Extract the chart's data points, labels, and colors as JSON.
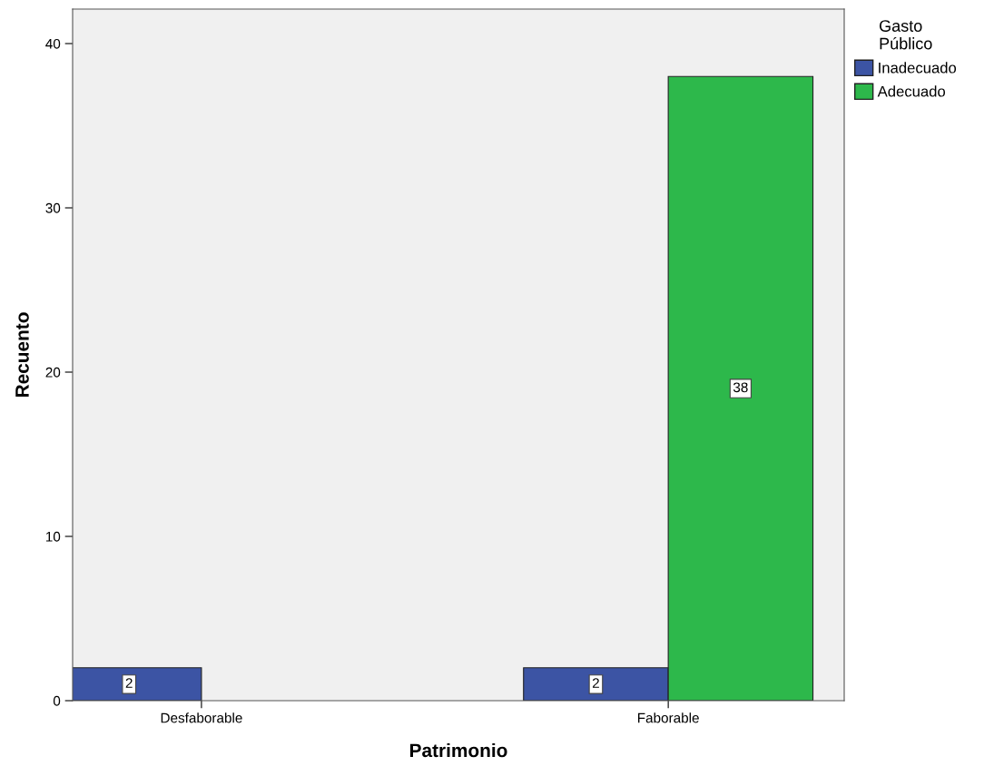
{
  "chart_data": {
    "type": "bar",
    "xlabel": "Patrimonio",
    "ylabel": "Recuento",
    "legend_title": "Gasto\nPúblico",
    "categories": [
      "Desfaborable",
      "Faborable"
    ],
    "series": [
      {
        "name": "Inadecuado",
        "color": "#3c54a4",
        "values": [
          2,
          2
        ],
        "value_labels": [
          "2",
          "2"
        ]
      },
      {
        "name": "Adecuado",
        "color": "#2db84b",
        "values": [
          null,
          38
        ],
        "value_labels": [
          null,
          "38"
        ]
      }
    ],
    "ylim": [
      0,
      42.1
    ],
    "yticks": [
      0,
      10,
      20,
      30,
      40
    ],
    "grid": false,
    "legend": "right"
  }
}
